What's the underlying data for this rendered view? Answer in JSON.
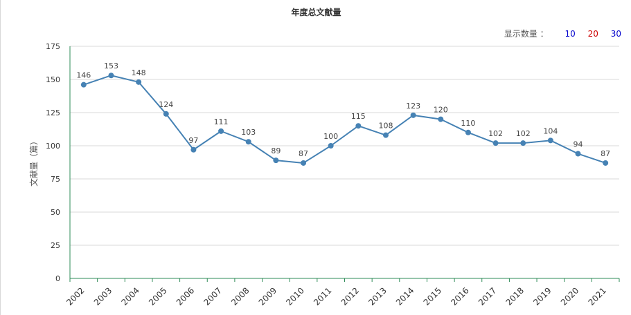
{
  "header": {
    "title": "年度总文献量",
    "display_count": {
      "label": "显示数量 ：",
      "options": [
        {
          "label": "10",
          "color": "#0000cc"
        },
        {
          "label": "20",
          "color": "#cc0000"
        },
        {
          "label": "30",
          "color": "#0000cc"
        }
      ]
    }
  },
  "colors": {
    "line": "#4682b4",
    "axis": "#2e8b57",
    "grid": "#d9d9d9",
    "text": "#555555"
  },
  "chart_data": {
    "type": "line",
    "title": "年度总文献量",
    "xlabel": "",
    "ylabel": "文献量（篇）",
    "ylim": [
      0,
      175
    ],
    "yticks": [
      0,
      25,
      50,
      75,
      100,
      125,
      150,
      175
    ],
    "grid": true,
    "categories": [
      "2002",
      "2003",
      "2004",
      "2005",
      "2006",
      "2007",
      "2008",
      "2009",
      "2010",
      "2011",
      "2012",
      "2013",
      "2014",
      "2015",
      "2016",
      "2017",
      "2018",
      "2019",
      "2020",
      "2021"
    ],
    "values": [
      146,
      153,
      148,
      124,
      97,
      111,
      103,
      89,
      87,
      100,
      115,
      108,
      123,
      120,
      110,
      102,
      102,
      104,
      94,
      87
    ]
  }
}
